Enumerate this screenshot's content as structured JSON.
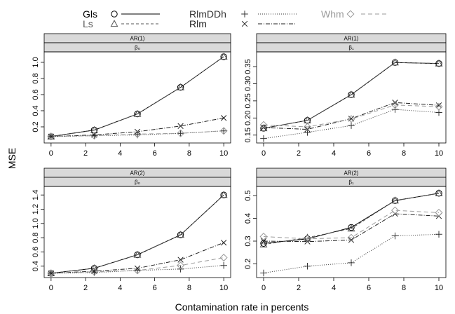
{
  "legend": [
    {
      "label": "Gls",
      "color": "#000000",
      "marker": "circle",
      "dash": ""
    },
    {
      "label": "Ls",
      "color": "#555555",
      "marker": "triangle",
      "dash": "4,3"
    },
    {
      "label": "RlmDDh",
      "color": "#333333",
      "marker": "plus",
      "dash": "1,2"
    },
    {
      "label": "Rlm",
      "color": "#222222",
      "marker": "cross",
      "dash": "6,2,1,2"
    },
    {
      "label": "Whm",
      "color": "#9a9a9a",
      "marker": "diamond",
      "dash": "6,4"
    }
  ],
  "chart_data": {
    "type": "line",
    "xlabel": "Contamination rate in percents",
    "ylabel": "MSE",
    "x": [
      0,
      2.5,
      5,
      7.5,
      10
    ],
    "xticks": [
      "0",
      "2",
      "4",
      "6",
      "8",
      "10"
    ],
    "xlim": [
      -0.4,
      10.4
    ],
    "panels": [
      {
        "model": "AR(1)",
        "param": "β₀",
        "ylim": [
          0.0,
          1.13
        ],
        "yticks": [
          "0.2",
          "0.4",
          "0.6",
          "0.8",
          "1.0"
        ],
        "ytick_values": [
          0.2,
          0.4,
          0.6,
          0.8,
          1.0
        ],
        "series": [
          {
            "name": "Gls",
            "values": [
              0.08,
              0.16,
              0.36,
              0.69,
              1.07
            ]
          },
          {
            "name": "Ls",
            "values": [
              0.08,
              0.16,
              0.36,
              0.69,
              1.07
            ]
          },
          {
            "name": "RlmDDh",
            "values": [
              0.08,
              0.09,
              0.1,
              0.12,
              0.15
            ]
          },
          {
            "name": "Rlm",
            "values": [
              0.08,
              0.1,
              0.14,
              0.21,
              0.31
            ]
          },
          {
            "name": "Whm",
            "values": [
              0.08,
              0.09,
              0.11,
              0.12,
              0.15
            ]
          }
        ]
      },
      {
        "model": "AR(1)",
        "param": "β₁",
        "ylim": [
          0.127,
          0.393
        ],
        "yticks": [
          "0.15",
          "0.20",
          "0.25",
          "0.30",
          "0.35"
        ],
        "ytick_values": [
          0.15,
          0.2,
          0.25,
          0.3,
          0.35
        ],
        "series": [
          {
            "name": "Gls",
            "values": [
              0.17,
              0.193,
              0.268,
              0.362,
              0.359
            ]
          },
          {
            "name": "Ls",
            "values": [
              0.17,
              0.193,
              0.268,
              0.362,
              0.359
            ]
          },
          {
            "name": "RlmDDh",
            "values": [
              0.14,
              0.158,
              0.178,
              0.225,
              0.216
            ]
          },
          {
            "name": "Rlm",
            "values": [
              0.172,
              0.167,
              0.198,
              0.245,
              0.237
            ]
          },
          {
            "name": "Whm",
            "values": [
              0.18,
              0.174,
              0.197,
              0.238,
              0.233
            ]
          }
        ]
      },
      {
        "model": "AR(2)",
        "param": "β₀",
        "ylim": [
          0.24,
          1.52
        ],
        "yticks": [
          "0.4",
          "0.6",
          "0.8",
          "1.0",
          "1.2",
          "1.4"
        ],
        "ytick_values": [
          0.4,
          0.6,
          0.8,
          1.0,
          1.2,
          1.4
        ],
        "series": [
          {
            "name": "Gls",
            "values": [
              0.3,
              0.37,
              0.56,
              0.84,
              1.4
            ]
          },
          {
            "name": "Ls",
            "values": [
              0.3,
              0.37,
              0.56,
              0.84,
              1.4
            ]
          },
          {
            "name": "RlmDDh",
            "values": [
              0.3,
              0.31,
              0.34,
              0.36,
              0.41
            ]
          },
          {
            "name": "Rlm",
            "values": [
              0.3,
              0.33,
              0.37,
              0.49,
              0.73
            ]
          },
          {
            "name": "Whm",
            "values": [
              0.3,
              0.32,
              0.34,
              0.41,
              0.52
            ]
          }
        ]
      },
      {
        "model": "AR(2)",
        "param": "β₁",
        "ylim": [
          0.14,
          0.54
        ],
        "yticks": [
          "0.2",
          "0.3",
          "0.4",
          "0.5"
        ],
        "ytick_values": [
          0.2,
          0.3,
          0.4,
          0.5
        ],
        "series": [
          {
            "name": "Gls",
            "values": [
              0.29,
              0.31,
              0.36,
              0.478,
              0.51
            ]
          },
          {
            "name": "Ls",
            "values": [
              0.285,
              0.315,
              0.355,
              0.478,
              0.51
            ]
          },
          {
            "name": "RlmDDh",
            "values": [
              0.16,
              0.19,
              0.205,
              0.323,
              0.33
            ]
          },
          {
            "name": "Rlm",
            "values": [
              0.3,
              0.298,
              0.305,
              0.42,
              0.41
            ]
          },
          {
            "name": "Whm",
            "values": [
              0.32,
              0.31,
              0.315,
              0.435,
              0.425
            ]
          }
        ]
      }
    ]
  }
}
